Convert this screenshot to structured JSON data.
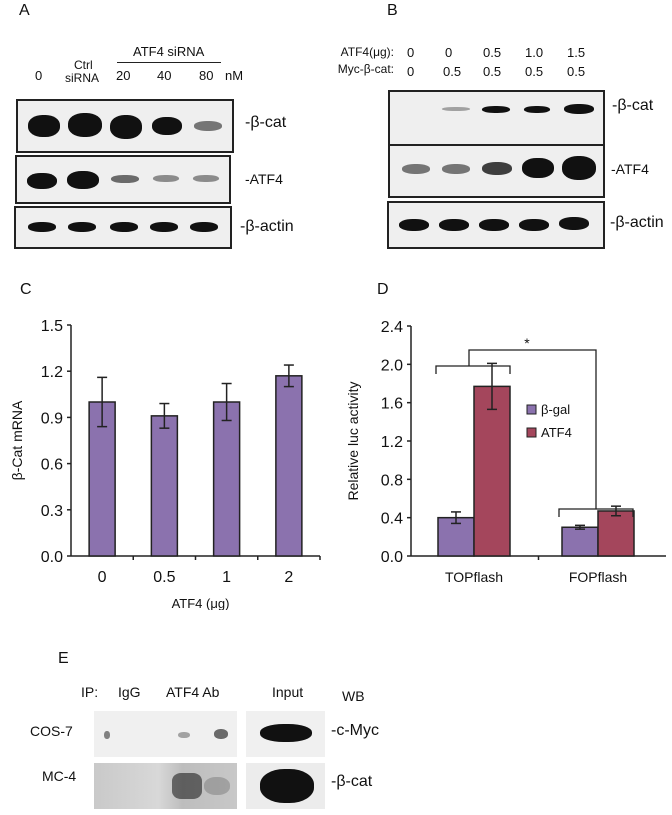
{
  "panels": {
    "A": {
      "letter": "A",
      "header": {
        "group_label": "ATF4 siRNA",
        "lanes": [
          "0",
          "Ctrl",
          "siRNA",
          "20",
          "40",
          "80"
        ],
        "unit": "nM"
      },
      "blots": [
        {
          "label": "-β-cat"
        },
        {
          "label": "-ATF4"
        },
        {
          "label": "-β-actin"
        }
      ]
    },
    "B": {
      "letter": "B",
      "header": {
        "row1_label": "ATF4(μg):",
        "row1_values": [
          "0",
          "0",
          "0.5",
          "1.0",
          "1.5"
        ],
        "row2_label": "Myc-β-cat:",
        "row2_values": [
          "0",
          "0.5",
          "0.5",
          "0.5",
          "0.5"
        ]
      },
      "blots": [
        {
          "label": "-β-cat"
        },
        {
          "label": "-ATF4"
        },
        {
          "label": "-β-actin"
        }
      ]
    },
    "C": {
      "letter": "C"
    },
    "D": {
      "letter": "D"
    },
    "E": {
      "letter": "E",
      "ip_label": "IP:",
      "col_labels": [
        "IgG",
        "ATF4 Ab",
        "Input"
      ],
      "wb_label": "WB",
      "rows": [
        {
          "cell_line": "COS-7",
          "blot_label": "-c-Myc"
        },
        {
          "cell_line": "MC-4",
          "blot_label": "-β-cat"
        }
      ]
    }
  },
  "chart_data": [
    {
      "panel": "C",
      "type": "bar",
      "title": "",
      "xlabel": "ATF4 (μg)",
      "ylabel": "β-Cat mRNA",
      "categories": [
        "0",
        "0.5",
        "1",
        "2"
      ],
      "values": [
        1.0,
        0.91,
        1.0,
        1.17
      ],
      "errors": [
        0.16,
        0.08,
        0.12,
        0.07
      ],
      "ylim": [
        0,
        1.5
      ],
      "yticks": [
        "0.0",
        "0.3",
        "0.6",
        "0.9",
        "1.2",
        "1.5"
      ],
      "grid": false,
      "bar_color": "#8b72ae"
    },
    {
      "panel": "D",
      "type": "bar",
      "title": "",
      "xlabel": "",
      "ylabel": "Relative luc activity",
      "categories": [
        "TOPflash",
        "FOPflash"
      ],
      "series": [
        {
          "name": "β-gal",
          "values": [
            0.4,
            0.3
          ],
          "errors": [
            0.06,
            0.02
          ],
          "color": "#8b72ae"
        },
        {
          "name": "ATF4",
          "values": [
            1.77,
            0.47
          ],
          "errors": [
            0.24,
            0.05
          ],
          "color": "#a4465c"
        }
      ],
      "ylim": [
        0,
        2.4
      ],
      "yticks": [
        "0.0",
        "0.4",
        "0.8",
        "1.2",
        "1.6",
        "2.0",
        "2.4"
      ],
      "grid": false,
      "legend_position": "upper-right-inside",
      "annotations": [
        {
          "text": "*",
          "meaning": "significance bracket between TOPflash and FOPflash"
        }
      ]
    }
  ]
}
